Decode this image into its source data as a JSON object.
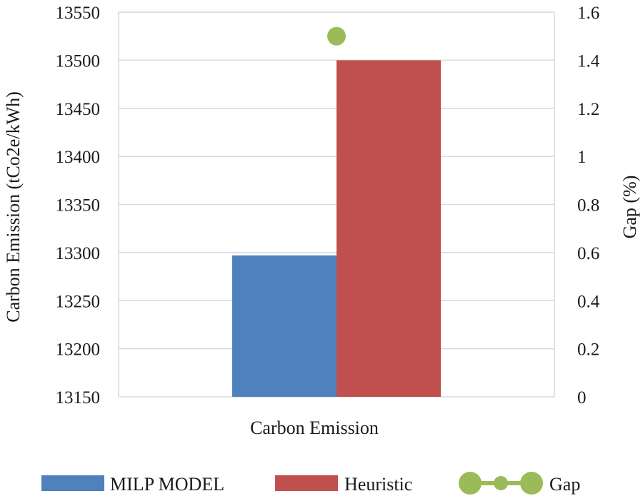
{
  "chart_data": {
    "type": "bar",
    "categories": [
      "Carbon Emission"
    ],
    "series": [
      {
        "name": "MILP MODEL",
        "axis": "left",
        "values": [
          13297
        ],
        "color": "#4f81bd"
      },
      {
        "name": "Heuristic",
        "axis": "left",
        "values": [
          13500
        ],
        "color": "#c0504d"
      }
    ],
    "line_series": [
      {
        "name": "Gap",
        "axis": "right",
        "values": [
          1.5
        ],
        "color": "#9bbb59",
        "marker": "circle"
      }
    ],
    "xlabel": "",
    "ylabel": "Carbon Emission (tCo2e/kWh)",
    "y2label": "Gap (%)",
    "ylim": [
      13150,
      13550
    ],
    "yticks": [
      "13150",
      "13200",
      "13250",
      "13300",
      "13350",
      "13400",
      "13450",
      "13500",
      "13550"
    ],
    "y2lim": [
      0,
      1.6
    ],
    "y2ticks": [
      "0",
      "0.2",
      "0.4",
      "0.6",
      "0.8",
      "1",
      "1.2",
      "1.4",
      "1.6"
    ],
    "grid": true,
    "legend_position": "bottom"
  }
}
